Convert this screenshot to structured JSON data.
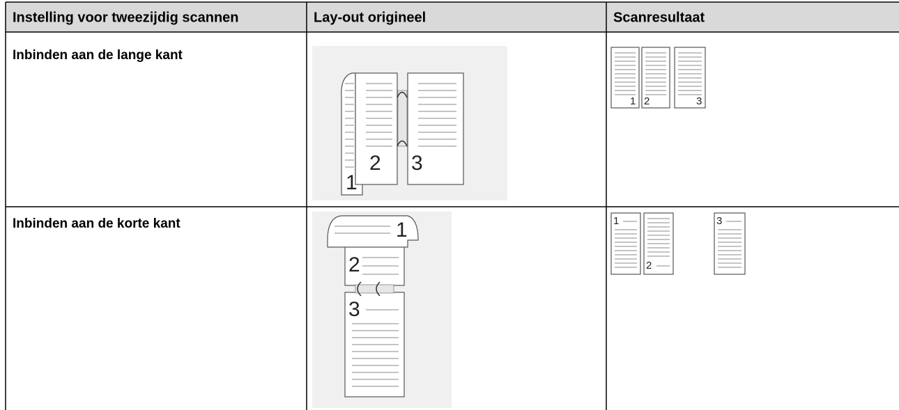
{
  "table": {
    "headers": [
      "Instelling voor tweezijdig scannen",
      "Lay-out origineel",
      "Scanresultaat"
    ],
    "rows": [
      {
        "setting": "Inbinden aan de lange kant",
        "layout_labels": [
          "1",
          "2",
          "3"
        ],
        "result_labels": [
          "1",
          "2",
          "3"
        ]
      },
      {
        "setting": "Inbinden aan de korte kant",
        "layout_labels": [
          "1",
          "2",
          "3"
        ],
        "result_labels": [
          "1",
          "2",
          "3"
        ]
      }
    ]
  }
}
